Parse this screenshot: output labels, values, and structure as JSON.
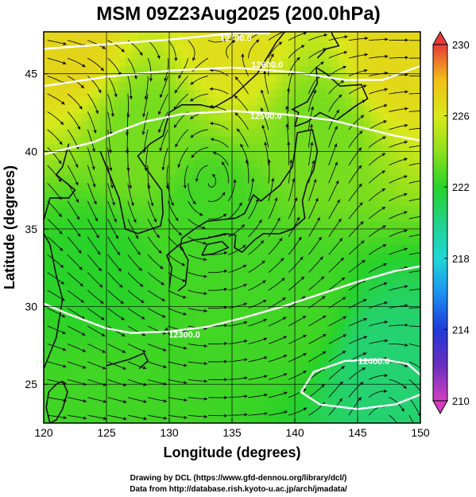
{
  "chart_data": {
    "type": "heatmap",
    "title": "MSM 09Z23Aug2025 (200.0hPa)",
    "xlabel": "Longitude (degrees)",
    "ylabel": "Latitude  (degrees)",
    "xlim": [
      120,
      150
    ],
    "ylim": [
      22.5,
      47.7
    ],
    "x_ticks": [
      120,
      125,
      130,
      135,
      140,
      145,
      150
    ],
    "y_ticks": [
      25,
      30,
      35,
      40,
      45
    ],
    "colorbar": {
      "min": 210,
      "max": 230,
      "ticks": [
        210,
        214,
        218,
        222,
        226,
        230
      ],
      "colors": [
        "#d23fbf",
        "#6a2fbf",
        "#2038d8",
        "#1c8ff0",
        "#1ed8d8",
        "#22d28a",
        "#28d228",
        "#8ee01c",
        "#d8e81a",
        "#f0c018",
        "#f08a26",
        "#e83a3a"
      ]
    },
    "field_description": "temperature (K) with geopotential height contours and wind streamlines",
    "contours": [
      {
        "label": "12300.0",
        "level": 12300
      },
      {
        "label": "12400.0",
        "level": 12400
      },
      {
        "label": "12500.0",
        "level": 12500
      },
      {
        "label": "12600.0",
        "level": 12600
      },
      {
        "label": "12700.0",
        "level": 12700
      }
    ],
    "grid": true,
    "vortex_center": {
      "lon": 133.2,
      "lat": 36.3
    },
    "temperature_samples": [
      {
        "lon": 122,
        "lat": 47,
        "value": 227
      },
      {
        "lon": 135,
        "lat": 47,
        "value": 226.5
      },
      {
        "lon": 148,
        "lat": 46,
        "value": 226.8
      },
      {
        "lon": 128,
        "lat": 41,
        "value": 223.5
      },
      {
        "lon": 142,
        "lat": 41,
        "value": 223.5
      },
      {
        "lon": 133,
        "lat": 36,
        "value": 222.5
      },
      {
        "lon": 124,
        "lat": 32,
        "value": 222
      },
      {
        "lon": 140,
        "lat": 30,
        "value": 222.5
      },
      {
        "lon": 147,
        "lat": 26,
        "value": 220.5
      },
      {
        "lon": 125,
        "lat": 24,
        "value": 222.5
      }
    ]
  },
  "credits": {
    "line1": "Drawing by DCL (https://www.gfd-dennou.org/library/dcl/)",
    "line2": "Data from http://database.rish.kyoto-u.ac.jp/arch/jmadata/"
  }
}
